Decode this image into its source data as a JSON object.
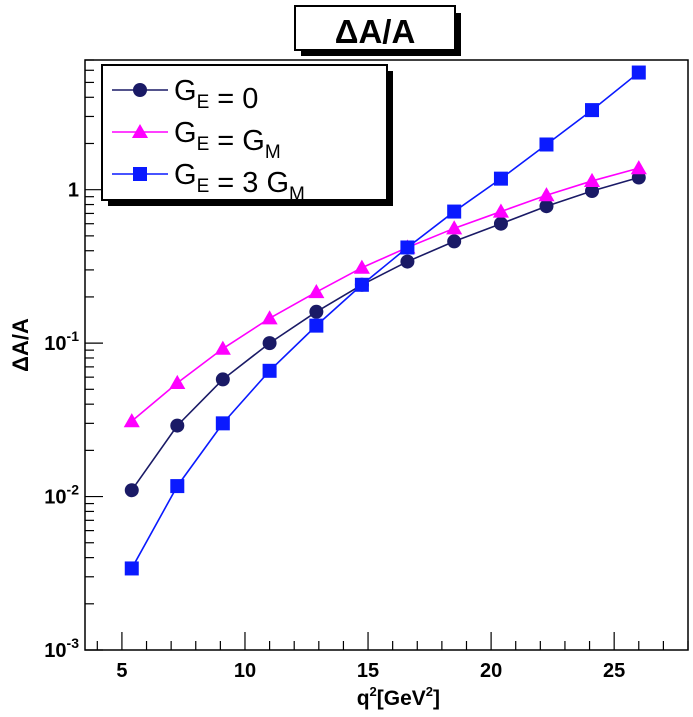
{
  "chart_data": {
    "type": "line",
    "title": "ΔA/A",
    "xlabel": {
      "base": "q",
      "sup": "2",
      "bracket_open": "[GeV",
      "bracket_sup": "2",
      "bracket_close": "]"
    },
    "ylabel": "ΔA/A",
    "xlim": [
      3.5,
      28
    ],
    "ylim": [
      0.001,
      7
    ],
    "yscale": "log",
    "grid": false,
    "legend_position": "top-left",
    "x_ticks": [
      {
        "value": 5,
        "label": "5"
      },
      {
        "value": 10,
        "label": "10"
      },
      {
        "value": 15,
        "label": "15"
      },
      {
        "value": 20,
        "label": "20"
      },
      {
        "value": 25,
        "label": "25"
      }
    ],
    "y_ticks": [
      {
        "value": 0.001,
        "base": "10",
        "exp": "-3"
      },
      {
        "value": 0.01,
        "base": "10",
        "exp": "-2"
      },
      {
        "value": 0.1,
        "base": "10",
        "exp": "-1"
      },
      {
        "value": 1,
        "base": "1",
        "exp": ""
      }
    ],
    "x": [
      5.4,
      7.25,
      9.1,
      11.0,
      12.9,
      14.75,
      16.6,
      18.5,
      20.4,
      22.25,
      24.1,
      26.0
    ],
    "series": [
      {
        "name": "G_E = 0",
        "legend": {
          "pre": "G",
          "sub1": "E",
          "mid": " = 0",
          "sub2": ""
        },
        "color": "#1a1a66",
        "marker": "circle",
        "values": [
          0.011,
          0.029,
          0.058,
          0.1,
          0.16,
          0.24,
          0.34,
          0.46,
          0.6,
          0.78,
          0.98,
          1.2
        ]
      },
      {
        "name": "G_E = G_M",
        "legend": {
          "pre": "G",
          "sub1": "E",
          "mid": " = G",
          "sub2": "M"
        },
        "color": "#ff00ff",
        "marker": "triangle",
        "values": [
          0.031,
          0.055,
          0.092,
          0.145,
          0.215,
          0.31,
          0.42,
          0.56,
          0.72,
          0.92,
          1.14,
          1.38
        ]
      },
      {
        "name": "G_E = 3 G_M",
        "legend": {
          "pre": "G",
          "sub1": "E",
          "mid": " = 3 G",
          "sub2": "M"
        },
        "color": "#0a1aff",
        "marker": "square",
        "values": [
          0.0034,
          0.0117,
          0.03,
          0.066,
          0.13,
          0.24,
          0.42,
          0.72,
          1.18,
          1.97,
          3.3,
          5.8
        ]
      }
    ]
  }
}
